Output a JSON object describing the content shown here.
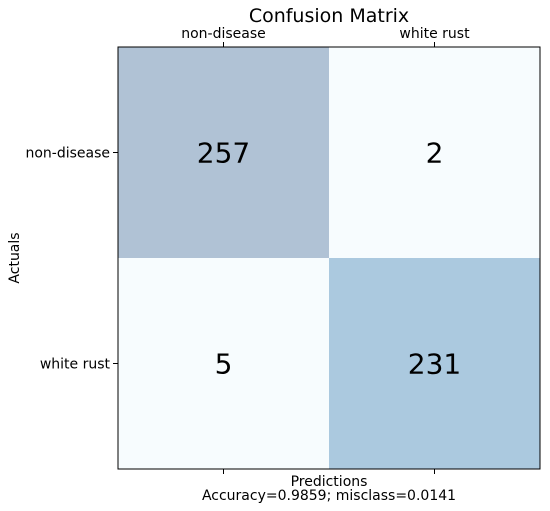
{
  "chart_data": {
    "type": "heatmap",
    "title": "Confusion Matrix",
    "xlabel": "Predictions",
    "ylabel": "Actuals",
    "footer": "Accuracy=0.9859; misclass=0.0141",
    "x_categories": [
      "non-disease",
      "white rust"
    ],
    "y_categories": [
      "non-disease",
      "white rust"
    ],
    "values": [
      [
        257,
        2
      ],
      [
        5,
        231
      ]
    ],
    "cell_colors": [
      [
        "#b0c2d5",
        "#f7fcfe"
      ],
      [
        "#f7fcfe",
        "#abc9df"
      ]
    ],
    "grid": false
  }
}
